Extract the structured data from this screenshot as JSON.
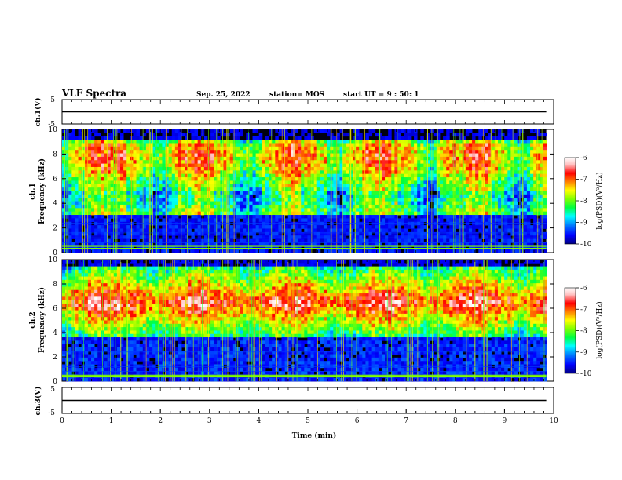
{
  "header": {
    "title": "VLF Spectra",
    "date": "Sep. 25, 2022",
    "station": "station= MOS",
    "start": "start  UT =   9 : 50: 1"
  },
  "colors": {
    "scale": [
      "#000080",
      "#0000ff",
      "#0080ff",
      "#00ffff",
      "#00ff40",
      "#80ff00",
      "#ffff00",
      "#ff8000",
      "#ff0000",
      "#ffc0c0",
      "#ffffff"
    ]
  },
  "chart_data": [
    {
      "id": "ch1-voltage",
      "type": "line",
      "ylabel": "ch.1(V)",
      "ylim": [
        -5,
        5
      ],
      "yticks": [
        "5",
        "-5"
      ],
      "value": 0
    },
    {
      "id": "ch1-spectrogram",
      "type": "heatmap",
      "ylabel_line1": "ch.1",
      "ylabel_line2": "Frequency (kHz)",
      "ylim": [
        0,
        10
      ],
      "yticks": [
        "0",
        "2",
        "4",
        "6",
        "8",
        "10"
      ],
      "colorbar": {
        "label": "log(PSD)(V²/Hz)",
        "ticks": [
          "-6",
          "-7",
          "-8",
          "-9",
          "-10"
        ],
        "range": [
          -10,
          -6
        ]
      }
    },
    {
      "id": "ch2-spectrogram",
      "type": "heatmap",
      "ylabel_line1": "ch.2",
      "ylabel_line2": "Frequency (kHz)",
      "ylim": [
        0,
        10
      ],
      "yticks": [
        "0",
        "2",
        "4",
        "6",
        "8",
        "10"
      ],
      "colorbar": {
        "label": "log(PSD)(V²/Hz)",
        "ticks": [
          "-6",
          "-7",
          "-8",
          "-9",
          "-10"
        ],
        "range": [
          -10,
          -6
        ]
      }
    },
    {
      "id": "ch3-voltage",
      "type": "line",
      "ylabel": "ch.3(V)",
      "ylim": [
        -5,
        5
      ],
      "yticks": [
        "5",
        "-5"
      ],
      "value": 0
    }
  ],
  "xaxis": {
    "label": "Time (min)",
    "ticks": [
      "0",
      "1",
      "2",
      "3",
      "4",
      "5",
      "6",
      "7",
      "8",
      "9",
      "10"
    ],
    "xlim": [
      0,
      10
    ],
    "data_end": 9.85
  }
}
